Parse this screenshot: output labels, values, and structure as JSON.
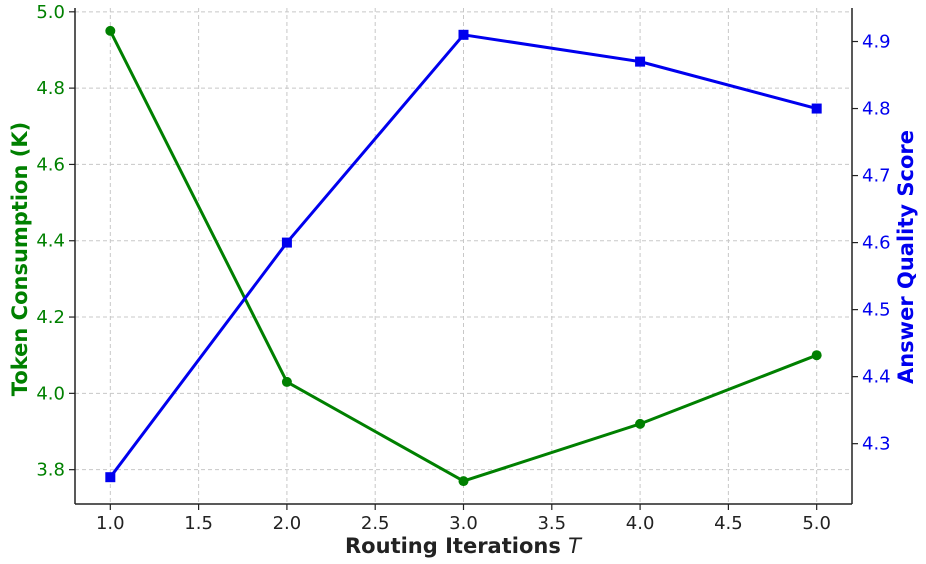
{
  "chart_data": {
    "type": "line",
    "title": "",
    "xlabel": "Routing Iterations",
    "xlabel_var": "T",
    "ylabel_left": "Token Consumption (K)",
    "ylabel_right": "Answer Quality Score",
    "xlim": [
      0.8,
      5.2
    ],
    "ylim_left": [
      3.71,
      5.01
    ],
    "ylim_right": [
      4.21,
      4.95
    ],
    "x_ticks": [
      1.0,
      1.5,
      2.0,
      2.5,
      3.0,
      3.5,
      4.0,
      4.5,
      5.0
    ],
    "y_left_ticks": [
      3.8,
      4.0,
      4.2,
      4.4,
      4.6,
      4.8,
      5.0
    ],
    "y_right_ticks": [
      4.3,
      4.4,
      4.5,
      4.6,
      4.7,
      4.8,
      4.9
    ],
    "grid": true,
    "legend": "none",
    "series": [
      {
        "axis": "left",
        "color": "#008000",
        "marker": "circle",
        "x": [
          1.0,
          2.0,
          3.0,
          4.0,
          5.0
        ],
        "values": [
          4.95,
          4.03,
          3.77,
          3.92,
          4.1
        ]
      },
      {
        "axis": "right",
        "color": "#0000ee",
        "marker": "square",
        "x": [
          1.0,
          2.0,
          3.0,
          4.0,
          5.0
        ],
        "values": [
          4.25,
          4.6,
          4.91,
          4.87,
          4.8
        ]
      }
    ],
    "colors": {
      "left_axis": "#008000",
      "right_axis": "#0000ee",
      "axis_line": "#222222",
      "x_text": "#222222"
    }
  }
}
